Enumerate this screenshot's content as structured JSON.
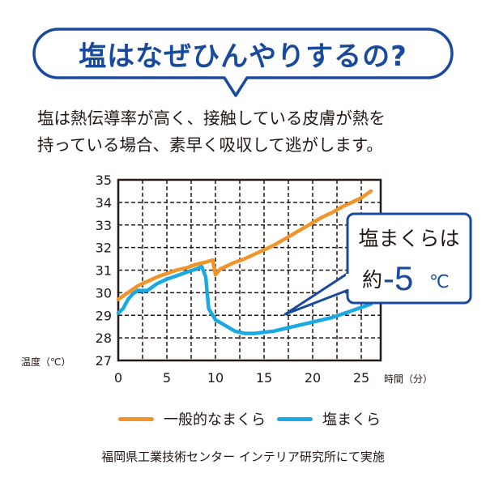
{
  "header": {
    "title": "塩はなぜひんやりするの?"
  },
  "description": {
    "line1": "塩は熱伝導率が高く、接触している皮膚が熱を",
    "line2": "持っている場合、素早く吸収して逃がします。"
  },
  "callout": {
    "line1": "塩まくらは",
    "prefix": "約",
    "value": "-5",
    "unit": "℃"
  },
  "colors": {
    "title_blue": "#1a4a9c",
    "ordinary_pillow": "#f0952a",
    "salt_pillow": "#1aa9e3",
    "callout_blue": "#1a4a9c",
    "grid": "#231815"
  },
  "source": "福岡県工業技術センター インテリア研究所にて実施",
  "chart_data": {
    "type": "line",
    "xlabel": "時間（分）",
    "ylabel": "温度（℃）",
    "xlim": [
      0,
      27
    ],
    "ylim": [
      27,
      35
    ],
    "x_ticks": [
      0,
      5,
      10,
      15,
      20,
      25
    ],
    "y_ticks": [
      27,
      28,
      29,
      30,
      31,
      32,
      33,
      34,
      35
    ],
    "grid": true,
    "legend_position": "bottom",
    "series": [
      {
        "name": "一般的なまくら",
        "color": "#f0952a",
        "points": [
          [
            0,
            29.7
          ],
          [
            1,
            30.0
          ],
          [
            2,
            30.3
          ],
          [
            3,
            30.5
          ],
          [
            4,
            30.7
          ],
          [
            5,
            30.85
          ],
          [
            6,
            31.0
          ],
          [
            7,
            31.1
          ],
          [
            8,
            31.25
          ],
          [
            9,
            31.35
          ],
          [
            9.7,
            31.45
          ],
          [
            10,
            30.8
          ],
          [
            10.5,
            31.05
          ],
          [
            11,
            31.15
          ],
          [
            12,
            31.35
          ],
          [
            13,
            31.5
          ],
          [
            14,
            31.7
          ],
          [
            15,
            31.9
          ],
          [
            16,
            32.1
          ],
          [
            17,
            32.35
          ],
          [
            18,
            32.6
          ],
          [
            19,
            32.85
          ],
          [
            20,
            33.1
          ],
          [
            21,
            33.35
          ],
          [
            22,
            33.55
          ],
          [
            23,
            33.8
          ],
          [
            24,
            34.0
          ],
          [
            25,
            34.2
          ],
          [
            26,
            34.5
          ]
        ]
      },
      {
        "name": "塩まくら",
        "color": "#1aa9e3",
        "points": [
          [
            0,
            29.1
          ],
          [
            0.5,
            29.3
          ],
          [
            1,
            29.7
          ],
          [
            1.5,
            29.95
          ],
          [
            2,
            30.1
          ],
          [
            3,
            30.1
          ],
          [
            4,
            30.4
          ],
          [
            5,
            30.6
          ],
          [
            6,
            30.75
          ],
          [
            7,
            30.9
          ],
          [
            8,
            31.05
          ],
          [
            8.6,
            31.15
          ],
          [
            9,
            30.7
          ],
          [
            9.3,
            29.3
          ],
          [
            10,
            28.8
          ],
          [
            11,
            28.55
          ],
          [
            12,
            28.3
          ],
          [
            13,
            28.2
          ],
          [
            14,
            28.2
          ],
          [
            15,
            28.25
          ],
          [
            16,
            28.3
          ],
          [
            17,
            28.4
          ],
          [
            18,
            28.5
          ],
          [
            19,
            28.6
          ],
          [
            20,
            28.7
          ],
          [
            21,
            28.8
          ],
          [
            22,
            28.9
          ],
          [
            23,
            29.05
          ],
          [
            24,
            29.2
          ],
          [
            25,
            29.35
          ],
          [
            26,
            29.5
          ]
        ]
      }
    ]
  }
}
